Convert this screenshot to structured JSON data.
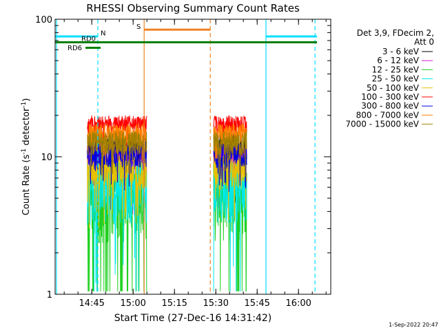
{
  "chart_data": {
    "type": "line",
    "title": "RHESSI Observing Summary Count Rates",
    "xlabel": "Start Time (27-Dec-16 14:31:42)",
    "ylabel_main": "Count Rate (s",
    "ylabel_sup1": "-1",
    "ylabel_mid": " detector",
    "ylabel_sup2": "-1",
    "ylabel_end": ")",
    "yscale": "log",
    "ylim": [
      1,
      100
    ],
    "xlim_minutes": [
      0,
      100
    ],
    "x_ticks": [
      {
        "t": 13.3,
        "label": "14:45"
      },
      {
        "t": 28.3,
        "label": "15:00"
      },
      {
        "t": 43.3,
        "label": "15:15"
      },
      {
        "t": 58.3,
        "label": "15:30"
      },
      {
        "t": 73.3,
        "label": "15:45"
      },
      {
        "t": 88.3,
        "label": "16:00"
      }
    ],
    "y_ticks": [
      {
        "v": 1,
        "label": "1"
      },
      {
        "v": 10,
        "label": "10"
      },
      {
        "v": 100,
        "label": "100"
      }
    ],
    "legend_header": [
      "Det 3,9, FDecim 2,",
      "Att 0"
    ],
    "legend_position": "right",
    "series": [
      {
        "name": "3 - 6 keV",
        "color": "#000000",
        "base": 11.5,
        "jitter": 0.3
      },
      {
        "name": "6 - 12 keV",
        "color": "#d020d0",
        "base": 9.8,
        "jitter": 0.3
      },
      {
        "name": "12 - 25 keV",
        "color": "#20d020",
        "base": 5.8,
        "jitter": 0.6
      },
      {
        "name": "25 - 50 keV",
        "color": "#00e8e8",
        "base": 6.3,
        "jitter": 0.5
      },
      {
        "name": "50 - 100 keV",
        "color": "#e8c000",
        "base": 8.2,
        "jitter": 0.3
      },
      {
        "name": "100 - 300 keV",
        "color": "#ff0000",
        "base": 17.5,
        "jitter": 0.14
      },
      {
        "name": "300 - 800 keV",
        "color": "#0000dd",
        "base": 10.6,
        "jitter": 0.22
      },
      {
        "name": "800 - 7000 keV",
        "color": "#ff8000",
        "base": 14.8,
        "jitter": 0.18
      },
      {
        "name": "7000 - 15000 keV",
        "color": "#a08000",
        "base": 12.8,
        "jitter": 0.2
      }
    ],
    "data_intervals_minutes": [
      [
        11.7,
        33.2
      ],
      [
        57.5,
        69.5
      ]
    ],
    "flag_labels": {
      "night": "N",
      "saa": "S",
      "rd6": "RD6",
      "rd0": "RD0"
    },
    "flag_bars": [
      {
        "flag": "night",
        "color": "#00e0ff",
        "level": 75,
        "segments": [
          [
            0,
            15.5
          ],
          [
            76.5,
            95
          ]
        ]
      },
      {
        "flag": "saa",
        "color": "#f08020",
        "level": 84,
        "segments": [
          [
            32.3,
            56.3
          ]
        ]
      },
      {
        "flag": "rd",
        "color": "#008000",
        "level": 68,
        "segments": [
          [
            0,
            95
          ]
        ]
      },
      {
        "flag": "rd6",
        "color": "#008000",
        "level": 62,
        "segments": [
          [
            11,
            16.5
          ]
        ]
      }
    ],
    "vertical_lines": [
      {
        "t": 0.5,
        "color": "#00e0ff",
        "style": "solid"
      },
      {
        "t": 15.5,
        "color": "#00e0ff",
        "style": "dashed"
      },
      {
        "t": 32.3,
        "color": "#f08020",
        "style": "solid"
      },
      {
        "t": 56.3,
        "color": "#f08020",
        "style": "dashed"
      },
      {
        "t": 76.5,
        "color": "#00e0ff",
        "style": "solid"
      },
      {
        "t": 94.3,
        "color": "#00e0ff",
        "style": "dashed"
      }
    ],
    "timestamp": "1-Sep-2022 20:47"
  }
}
